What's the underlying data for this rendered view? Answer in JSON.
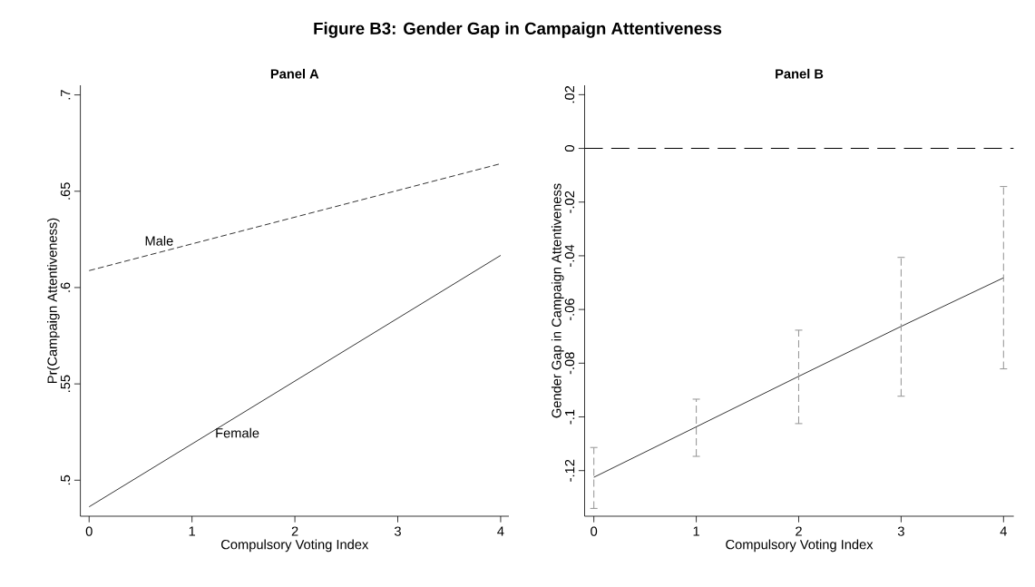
{
  "chart_data": [
    {
      "type": "line",
      "title": "Figure B3: Gender Gap in Campaign Attentiveness",
      "subtitle": "Panel A",
      "xlabel": "Compulsory Voting Index",
      "ylabel": "Pr(Campaign Attentiveness)",
      "x": [
        0,
        4
      ],
      "series": [
        {
          "name": "Male",
          "color": "#000000",
          "line_style": "dashed",
          "values": [
            0.6088,
            0.6643
          ]
        },
        {
          "name": "Female",
          "color": "#000000",
          "line_style": "solid",
          "values": [
            0.4862,
            0.6167
          ]
        }
      ],
      "xlim": [
        -0.085,
        4.08
      ],
      "ylim": [
        0.4813,
        0.705
      ],
      "xticks": [
        0,
        1,
        2,
        3,
        4
      ],
      "yticks": [
        {
          "value": 0.5,
          "label": ".5"
        },
        {
          "value": 0.55,
          "label": ".55"
        },
        {
          "value": 0.6,
          "label": ".6"
        },
        {
          "value": 0.65,
          "label": ".65"
        },
        {
          "value": 0.7,
          "label": ".7"
        }
      ],
      "grid": false
    },
    {
      "type": "line",
      "title": "Panel B",
      "xlabel": "Compulsory Voting Index",
      "ylabel": "Gender Gap in Campaign Attentiveness",
      "x": [
        0,
        1,
        2,
        3,
        4
      ],
      "series": [
        {
          "color": "#000000",
          "line_style": "solid",
          "values": [
            -0.1225,
            -0.1037,
            -0.0849,
            -0.0663,
            -0.0482
          ],
          "errors": [
            [
              -0.1341,
              -0.1114
            ],
            [
              -0.1147,
              -0.0934
            ],
            [
              -0.1025,
              -0.0677
            ],
            [
              -0.0923,
              -0.0406
            ],
            [
              -0.0821,
              -0.0142
            ]
          ]
        }
      ],
      "ref_lines": [
        {
          "axis": "y",
          "value": 0,
          "color": "#000000",
          "line_style": "dashed"
        }
      ],
      "xlim": [
        -0.09,
        4.1
      ],
      "ylim": [
        -0.137,
        0.0235
      ],
      "xticks": [
        0,
        1,
        2,
        3,
        4
      ],
      "yticks": [
        {
          "value": -0.12,
          "label": "-.12"
        },
        {
          "value": -0.1,
          "label": "-.1"
        },
        {
          "value": -0.08,
          "label": "-.08"
        },
        {
          "value": -0.06,
          "label": "-.06"
        },
        {
          "value": -0.04,
          "label": "-.04"
        },
        {
          "value": -0.02,
          "label": "-.02"
        },
        {
          "value": 0,
          "label": "0"
        },
        {
          "value": 0.02,
          "label": ".02"
        }
      ],
      "grid": false
    }
  ]
}
